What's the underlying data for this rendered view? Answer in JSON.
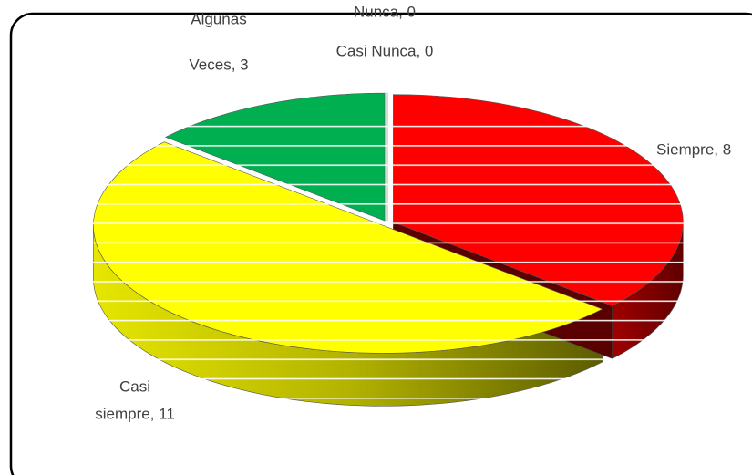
{
  "chart_data": {
    "type": "pie3d",
    "categories_hidden": null,
    "values": [
      8,
      11,
      3,
      0,
      0
    ],
    "value_labels": [
      [
        "Siempre, 8"
      ],
      [
        "Casi",
        "siempre, 11"
      ],
      [
        "Algunas",
        "Veces, 3"
      ],
      [
        "Casi Nunca, 0"
      ],
      [
        "Nunca, 0"
      ]
    ],
    "colors": [
      "#ff0000",
      "#ffff00",
      "#00b050",
      "#a6a6a6",
      "#d9d9d9"
    ]
  }
}
